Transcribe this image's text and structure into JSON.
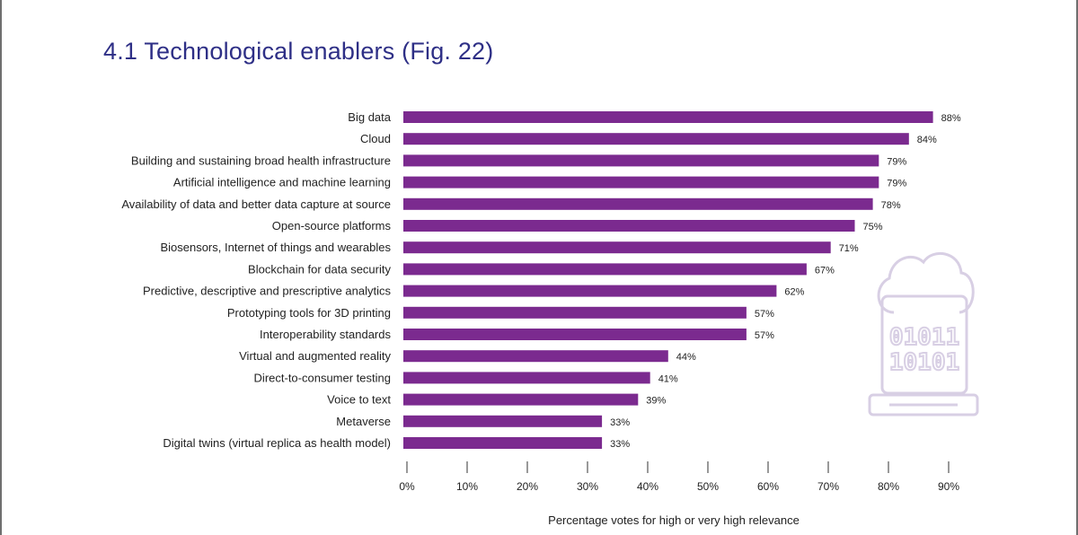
{
  "page": {
    "title": "4.1 Technological enablers (Fig. 22)"
  },
  "chart_data": {
    "type": "bar",
    "orientation": "horizontal",
    "title": "",
    "xlabel": "Percentage votes for high or very high relevance",
    "ylabel": "",
    "xlim": [
      0,
      90
    ],
    "ticks": [
      "0%",
      "10%",
      "20%",
      "30%",
      "40%",
      "50%",
      "60%",
      "70%",
      "80%",
      "90%"
    ],
    "tick_values": [
      0,
      10,
      20,
      30,
      40,
      50,
      60,
      70,
      80,
      90
    ],
    "grid": false,
    "bar_color": "#7b2a8f",
    "categories": [
      "Big data",
      "Cloud",
      "Building and sustaining broad health infrastructure",
      "Artificial intelligence and machine learning",
      "Availability of data and better data capture at source",
      "Open-source platforms",
      "Biosensors, Internet of things and wearables",
      "Blockchain for data security",
      "Predictive, descriptive and prescriptive analytics",
      "Prototyping tools for 3D printing",
      "Interoperability standards",
      "Virtual and augmented reality",
      "Direct-to-consumer testing",
      "Voice to text",
      "Metaverse",
      "Digital twins (virtual replica as health model)"
    ],
    "values": [
      88,
      84,
      79,
      79,
      78,
      75,
      71,
      67,
      62,
      57,
      57,
      44,
      41,
      39,
      33,
      33
    ],
    "value_labels": [
      "88%",
      "84%",
      "79%",
      "79%",
      "78%",
      "75%",
      "71%",
      "67%",
      "62%",
      "57%",
      "57%",
      "44%",
      "41%",
      "39%",
      "33%",
      "33%"
    ]
  },
  "decoration": {
    "icon": "cloud-binary-computer-icon",
    "binary_lines": [
      "01011",
      "10101"
    ],
    "color": "#d8cfe4"
  }
}
